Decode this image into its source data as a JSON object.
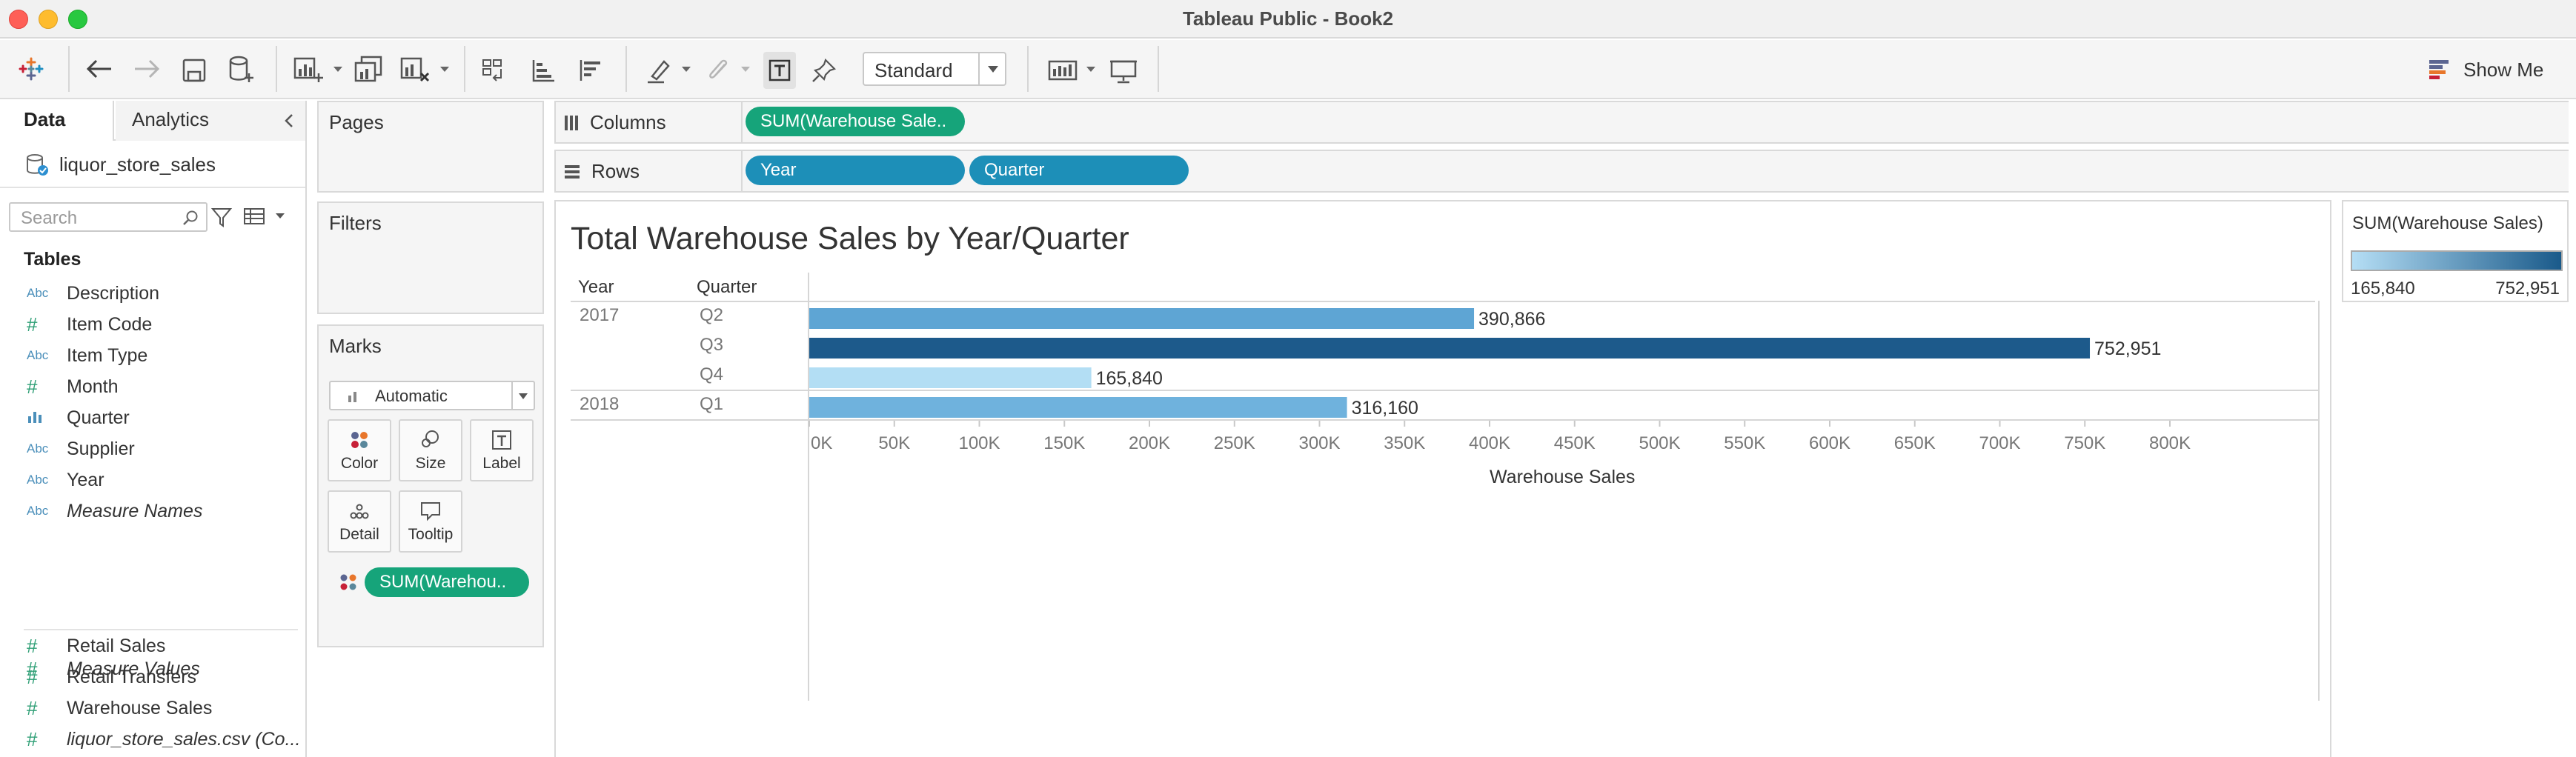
{
  "window": {
    "title": "Tableau Public - Book2"
  },
  "toolbar": {
    "fit_value": "Standard",
    "show_me_label": "Show Me"
  },
  "data_pane": {
    "tabs": [
      {
        "label": "Data"
      },
      {
        "label": "Analytics"
      }
    ],
    "data_source": "liquor_store_sales",
    "search_placeholder": "Search",
    "tables_heading": "Tables",
    "fields": [
      {
        "type": "Abc",
        "name": "Description",
        "italic": false
      },
      {
        "type": "#",
        "name": "Item Code",
        "italic": false
      },
      {
        "type": "Abc",
        "name": "Item Type",
        "italic": false
      },
      {
        "type": "#",
        "name": "Month",
        "italic": false
      },
      {
        "type": "bar-chart-icon",
        "name": "Quarter",
        "italic": false
      },
      {
        "type": "Abc",
        "name": "Supplier",
        "italic": false
      },
      {
        "type": "Abc",
        "name": "Year",
        "italic": false
      },
      {
        "type": "Abc",
        "name": "Measure Names",
        "italic": true
      },
      {
        "type": "#",
        "name": "Retail Sales",
        "italic": false
      },
      {
        "type": "#",
        "name": "Retail Transfers",
        "italic": false
      },
      {
        "type": "#",
        "name": "Warehouse Sales",
        "italic": false
      },
      {
        "type": "#",
        "name": "liquor_store_sales.csv (Co...",
        "italic": true
      },
      {
        "type": "#",
        "name": "Measure Values",
        "italic": true
      }
    ]
  },
  "cards": {
    "pages_title": "Pages",
    "filters_title": "Filters",
    "marks_title": "Marks",
    "marks_type": "Automatic",
    "mark_buttons": [
      "Color",
      "Size",
      "Label",
      "Detail",
      "Tooltip"
    ],
    "marks_pill": "SUM(Warehou.."
  },
  "shelves": {
    "columns_label": "Columns",
    "rows_label": "Rows",
    "columns_pills": [
      "SUM(Warehouse Sale.."
    ],
    "rows_pills": [
      "Year",
      "Quarter"
    ]
  },
  "view": {
    "title": "Total Warehouse Sales by Year/Quarter",
    "year_header": "Year",
    "quarter_header": "Quarter"
  },
  "legend": {
    "title": "SUM(Warehouse Sales)",
    "min_label": "165,840",
    "max_label": "752,951",
    "color_low": "#b5def5",
    "color_high": "#1a5a8a"
  },
  "chart_data": {
    "type": "bar",
    "orientation": "horizontal",
    "title": "Total Warehouse Sales by Year/Quarter",
    "xlabel": "Warehouse Sales",
    "ylabel": "",
    "xlim": [
      0,
      800000
    ],
    "grid": false,
    "rows": [
      {
        "year": "2017",
        "quarter": "Q2",
        "value": 390866,
        "label": "390,866",
        "color": "#5ea5d4"
      },
      {
        "year": "",
        "quarter": "Q3",
        "value": 752951,
        "label": "752,951",
        "color": "#1d5a8b"
      },
      {
        "year": "",
        "quarter": "Q4",
        "value": 165840,
        "label": "165,840",
        "color": "#b3def4"
      },
      {
        "year": "2018",
        "quarter": "Q1",
        "value": 316160,
        "label": "316,160",
        "color": "#6fb2dd"
      }
    ],
    "x_ticks": [
      {
        "value": 0,
        "label": "0K"
      },
      {
        "value": 50000,
        "label": "50K"
      },
      {
        "value": 100000,
        "label": "100K"
      },
      {
        "value": 150000,
        "label": "150K"
      },
      {
        "value": 200000,
        "label": "200K"
      },
      {
        "value": 250000,
        "label": "250K"
      },
      {
        "value": 300000,
        "label": "300K"
      },
      {
        "value": 350000,
        "label": "350K"
      },
      {
        "value": 400000,
        "label": "400K"
      },
      {
        "value": 450000,
        "label": "450K"
      },
      {
        "value": 500000,
        "label": "500K"
      },
      {
        "value": 550000,
        "label": "550K"
      },
      {
        "value": 600000,
        "label": "600K"
      },
      {
        "value": 650000,
        "label": "650K"
      },
      {
        "value": 700000,
        "label": "700K"
      },
      {
        "value": 750000,
        "label": "750K"
      },
      {
        "value": 800000,
        "label": "800K"
      }
    ]
  }
}
